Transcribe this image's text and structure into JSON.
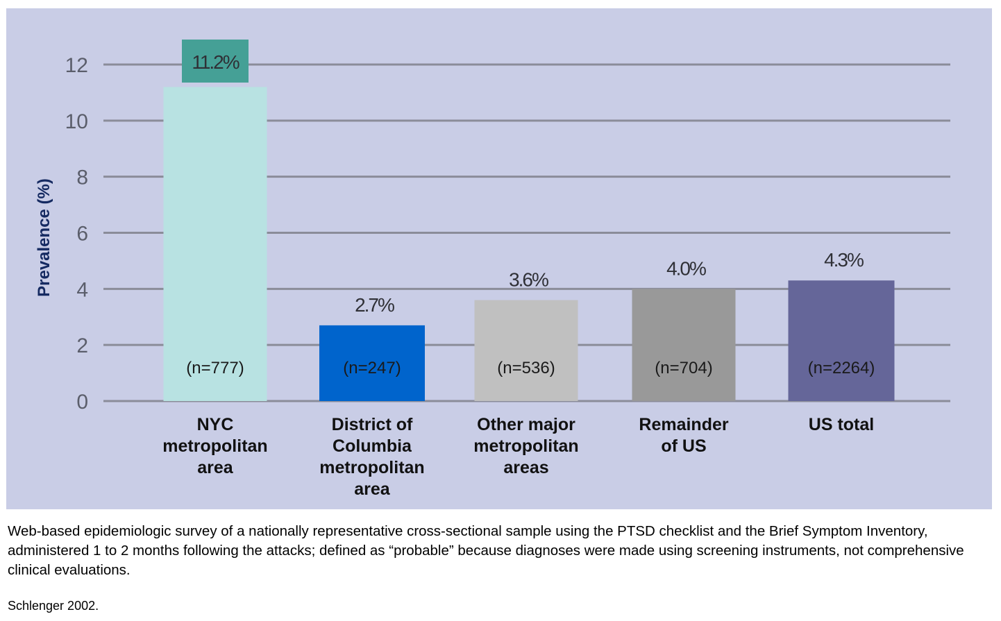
{
  "chart_data": {
    "type": "bar",
    "title": "",
    "xlabel": "",
    "ylabel": "Prevalence (%)",
    "ylim": [
      0,
      12
    ],
    "yticks": [
      0,
      2,
      4,
      6,
      8,
      10,
      12
    ],
    "grid": true,
    "categories": [
      [
        "NYC",
        "metropolitan",
        "area"
      ],
      [
        "District of",
        "Columbia",
        "metropolitan",
        "area"
      ],
      [
        "Other major",
        "metropolitan",
        "areas"
      ],
      [
        "Remainder",
        "of US"
      ],
      [
        "US total"
      ]
    ],
    "values": [
      11.2,
      2.7,
      3.6,
      4.0,
      4.3
    ],
    "value_labels": [
      "11.2%",
      "2.7%",
      "3.6%",
      "4.0%",
      "4.3%"
    ],
    "sample_sizes": [
      "(n=777)",
      "(n=247)",
      "(n=536)",
      "(n=704)",
      "(n=2264)"
    ],
    "colors": [
      "#b8e2e2",
      "#0064cc",
      "#c0c0c0",
      "#999999",
      "#656699"
    ],
    "highlight_label_bg": "#45a096",
    "grid_color": "#8a8c99"
  },
  "caption": "Web-based epidemiologic survey of a nationally representative cross-sectional sample using the PTSD checklist and the Brief Symptom Inventory, administered 1 to 2 months following the attacks; defined as “probable” because diagnoses were made using screening instruments, not comprehensive clinical evaluations.",
  "source": "Schlenger 2002."
}
